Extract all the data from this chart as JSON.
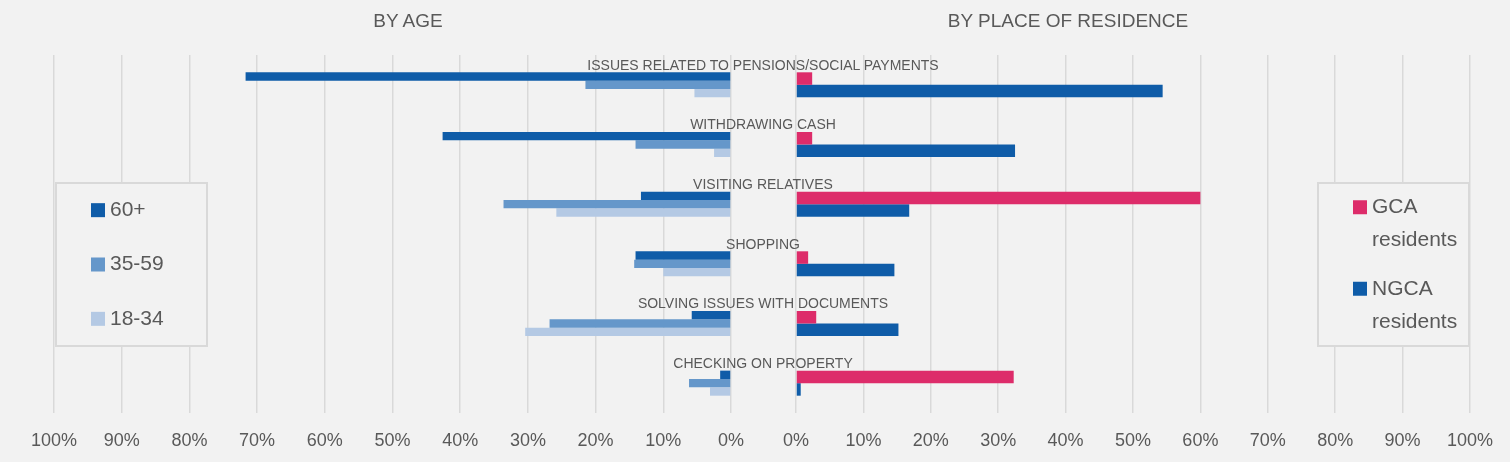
{
  "chart_data": [
    {
      "type": "bar",
      "orientation": "horizontal",
      "title": "BY AGE",
      "categories": [
        null,
        null,
        null,
        null,
        null,
        null
      ],
      "series": [
        {
          "name": "60+",
          "color": "#0f5ca8",
          "values": [
            71.7,
            42.6,
            13.3,
            14.1,
            5.8,
            1.6
          ]
        },
        {
          "name": "35-59",
          "color": "#6597ca",
          "values": [
            21.5,
            14.1,
            33.6,
            14.3,
            26.8,
            6.2
          ]
        },
        {
          "name": "18-34",
          "color": "#b4c9e4",
          "values": [
            5.4,
            2.5,
            25.8,
            10,
            30.4,
            3.1
          ]
        }
      ],
      "xlim": [
        100,
        0
      ],
      "xticks": [
        {
          "value": 100,
          "label": "100%"
        },
        {
          "value": 90,
          "label": "90%"
        },
        {
          "value": 80,
          "label": "80%"
        },
        {
          "value": 70,
          "label": "70%"
        },
        {
          "value": 60,
          "label": "60%"
        },
        {
          "value": 50,
          "label": "50%"
        },
        {
          "value": 40,
          "label": "40%"
        },
        {
          "value": 30,
          "label": "30%"
        },
        {
          "value": 20,
          "label": "20%"
        },
        {
          "value": 10,
          "label": "10%"
        },
        {
          "value": 0,
          "label": "0%"
        }
      ],
      "grid": "x",
      "legend": "left",
      "tick_labels": "x"
    },
    {
      "type": "bar",
      "orientation": "horizontal",
      "title": "BY PLACE OF RESIDENCE",
      "categories": [
        "ISSUES RELATED TO PENSIONS/SOCIAL PAYMENTS",
        "WITHDRAWING CASH",
        "VISITING RELATIVES",
        "SHOPPING",
        "SOLVING ISSUES WITH DOCUMENTS",
        "CHECKING ON PROPERTY"
      ],
      "series": [
        {
          "name": "GCA residents",
          "color": "#dd2c6a",
          "values": [
            2.4,
            2.4,
            60,
            1.8,
            3,
            32.3
          ]
        },
        {
          "name": "NGCA residents",
          "color": "#0f5ca8",
          "values": [
            54.4,
            32.5,
            16.8,
            14.6,
            15.2,
            0.7
          ]
        }
      ],
      "xlim": [
        0,
        100
      ],
      "xticks": [
        {
          "value": 0,
          "label": "0%"
        },
        {
          "value": 10,
          "label": "10%"
        },
        {
          "value": 20,
          "label": "20%"
        },
        {
          "value": 30,
          "label": "30%"
        },
        {
          "value": 40,
          "label": "40%"
        },
        {
          "value": 50,
          "label": "50%"
        },
        {
          "value": 60,
          "label": "60%"
        },
        {
          "value": 70,
          "label": "70%"
        },
        {
          "value": 80,
          "label": "80%"
        },
        {
          "value": 90,
          "label": "90%"
        },
        {
          "value": 100,
          "label": "100%"
        }
      ],
      "grid": "x",
      "legend": "right"
    }
  ]
}
